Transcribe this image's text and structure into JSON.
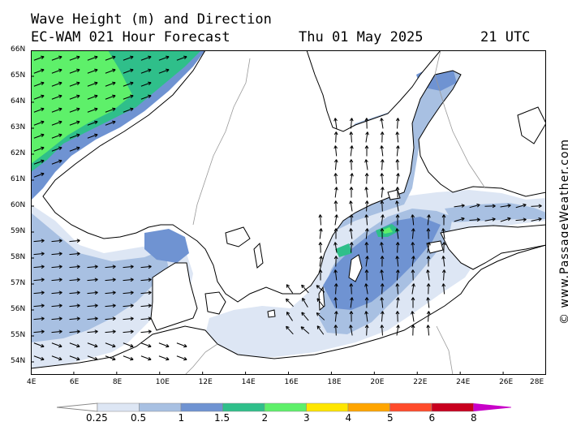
{
  "title_line1": "Wave Height (m) and Direction",
  "title_model": "EC-WAM 021 Hour Forecast",
  "title_date": "Thu 01 May 2025",
  "title_time": "21 UTC",
  "credit": "© www.PassageWeather.com",
  "lat_labels": [
    "66N",
    "65N",
    "64N",
    "63N",
    "62N",
    "61N",
    "60N",
    "59N",
    "58N",
    "57N",
    "56N",
    "55N",
    "54N"
  ],
  "lon_labels": [
    "4E",
    "6E",
    "8E",
    "10E",
    "12E",
    "14E",
    "16E",
    "18E",
    "20E",
    "22E",
    "24E",
    "26E",
    "28E"
  ],
  "legend_labels": [
    "0.25",
    "0.5",
    "1",
    "1.5",
    "2",
    "3",
    "4",
    "5",
    "6",
    "8"
  ],
  "legend_colors": [
    "#ffffff",
    "#dde6f4",
    "#a8c0e2",
    "#6f93d2",
    "#2fbf8a",
    "#5ef06a",
    "#ffe600",
    "#ffa500",
    "#ff4b2b",
    "#c8001e",
    "#c800c8"
  ],
  "land_color": "#ffffff",
  "coast_color": "#000000"
}
